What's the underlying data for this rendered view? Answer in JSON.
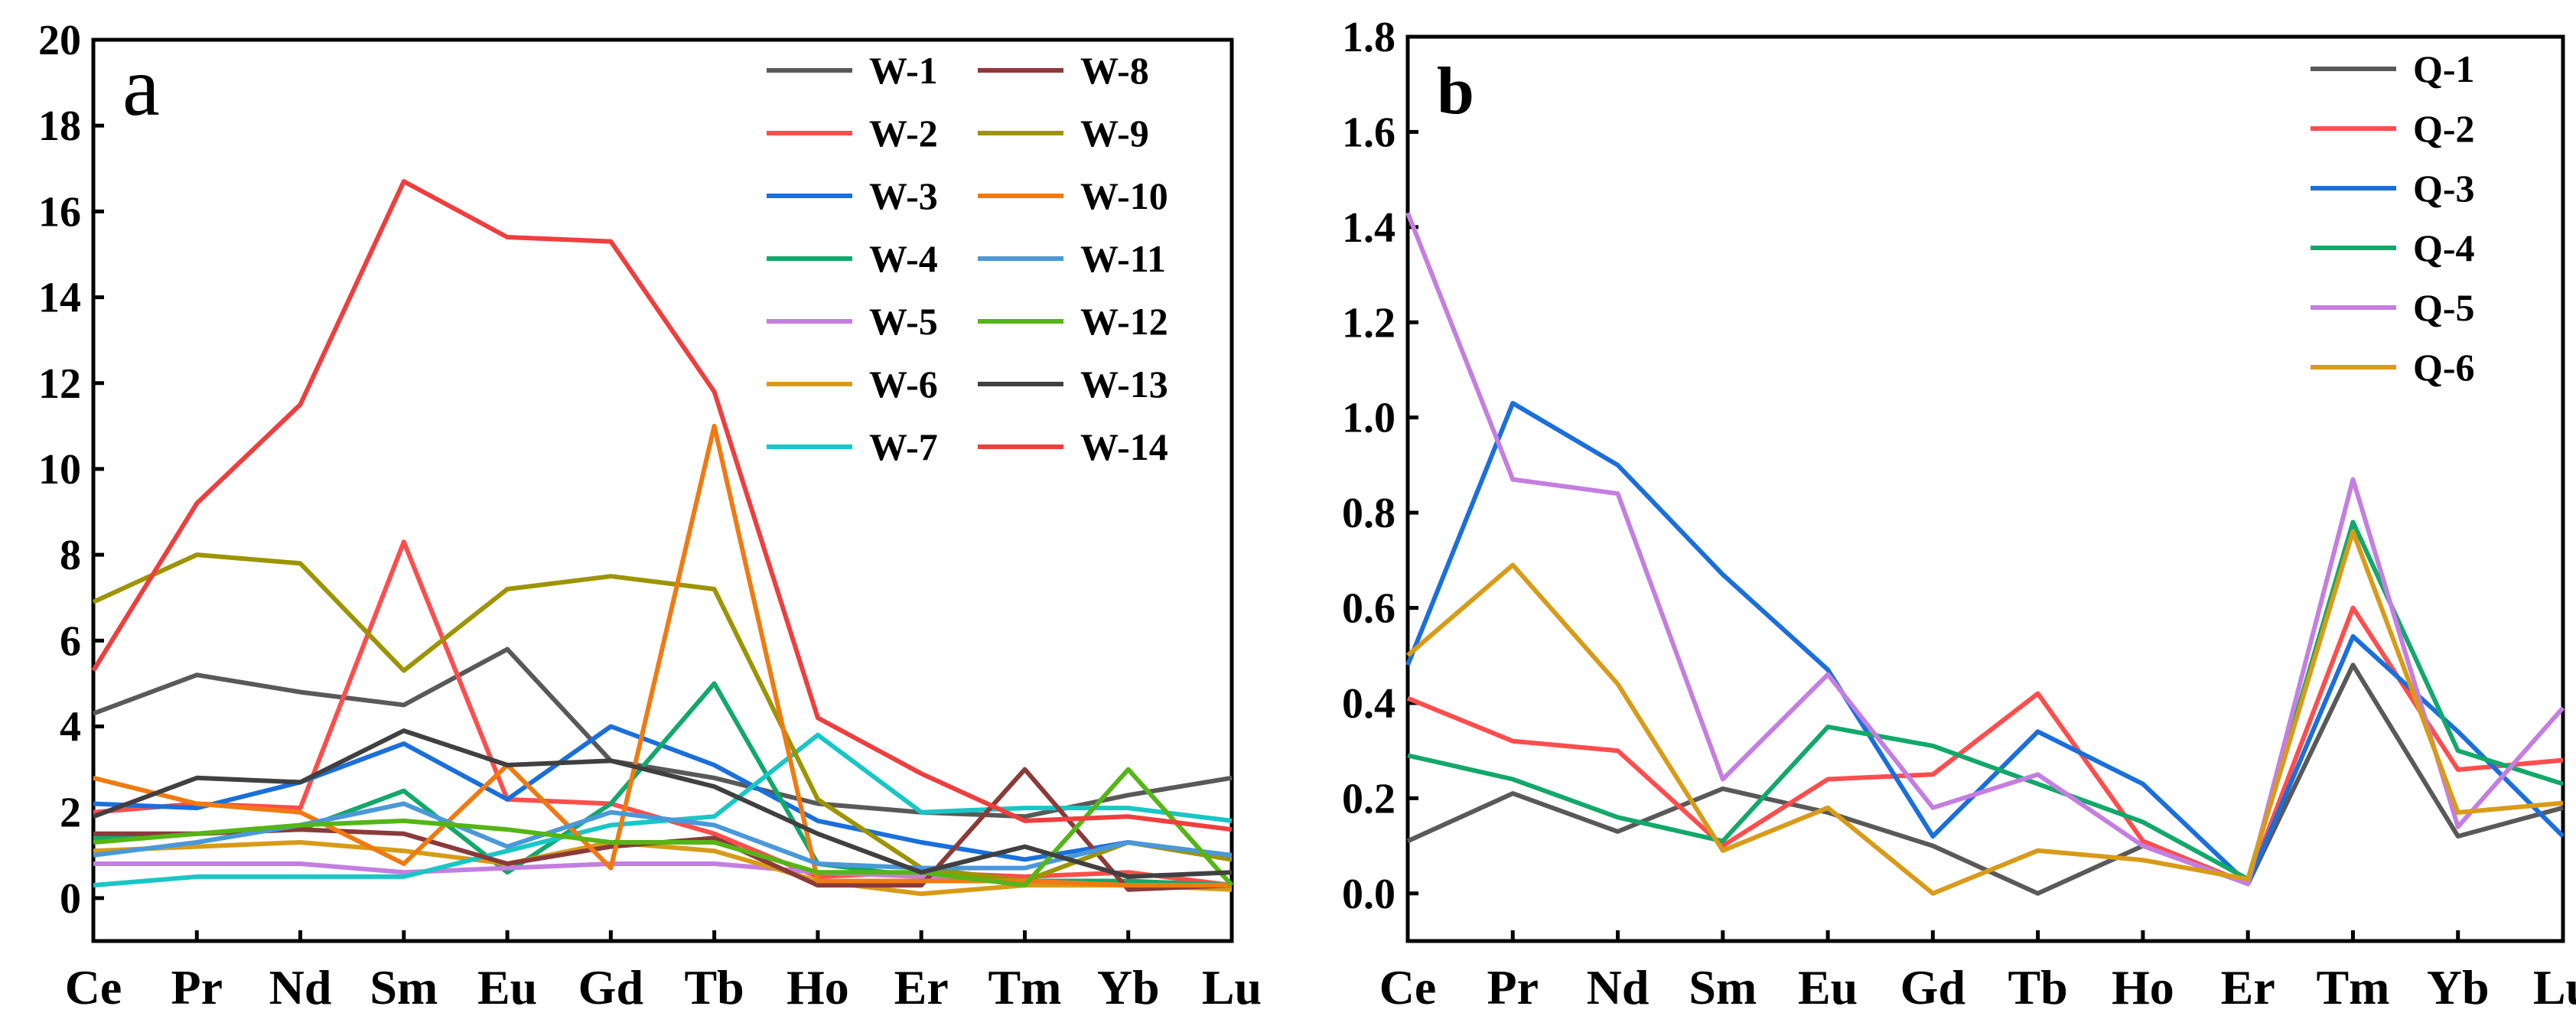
{
  "chart_data": [
    {
      "type": "line",
      "panel_label": "a",
      "categories": [
        "Ce",
        "Pr",
        "Nd",
        "Sm",
        "Eu",
        "Gd",
        "Tb",
        "Ho",
        "Er",
        "Tm",
        "Yb",
        "Lu"
      ],
      "ylim": [
        -1,
        20
      ],
      "yticks": [
        "0",
        "2",
        "4",
        "6",
        "8",
        "10",
        "12",
        "14",
        "16",
        "18",
        "20"
      ],
      "legend_position": "top-right",
      "legend_columns": 2,
      "series": [
        {
          "name": "W-1",
          "color": "#595959",
          "values": [
            4.3,
            5.2,
            4.8,
            4.5,
            5.8,
            3.2,
            2.8,
            2.2,
            2.0,
            1.9,
            2.4,
            2.8
          ]
        },
        {
          "name": "W-2",
          "color": "#ff4d4d",
          "values": [
            2.0,
            2.2,
            2.1,
            8.3,
            2.3,
            2.2,
            1.5,
            0.5,
            0.6,
            0.5,
            0.6,
            0.3
          ]
        },
        {
          "name": "W-3",
          "color": "#1a6fdb",
          "values": [
            2.2,
            2.1,
            2.7,
            3.6,
            2.3,
            4.0,
            3.1,
            1.8,
            1.3,
            0.9,
            1.3,
            0.9
          ]
        },
        {
          "name": "W-4",
          "color": "#13a86b",
          "values": [
            1.4,
            1.5,
            1.6,
            2.5,
            0.6,
            2.2,
            5.0,
            0.8,
            0.5,
            0.4,
            0.4,
            0.3
          ]
        },
        {
          "name": "W-5",
          "color": "#c47ee0",
          "values": [
            0.8,
            0.8,
            0.8,
            0.6,
            0.7,
            0.8,
            0.8,
            0.6,
            0.5,
            0.4,
            0.3,
            0.3
          ]
        },
        {
          "name": "W-6",
          "color": "#d89b18",
          "values": [
            1.1,
            1.2,
            1.3,
            1.1,
            0.8,
            1.3,
            1.1,
            0.4,
            0.1,
            0.3,
            0.3,
            0.2
          ]
        },
        {
          "name": "W-7",
          "color": "#19c6c6",
          "values": [
            0.3,
            0.5,
            0.5,
            0.5,
            1.1,
            1.7,
            1.9,
            3.8,
            2.0,
            2.1,
            2.1,
            1.8
          ]
        },
        {
          "name": "W-8",
          "color": "#8b3a3a",
          "values": [
            1.5,
            1.5,
            1.6,
            1.5,
            0.8,
            1.2,
            1.4,
            0.3,
            0.3,
            3.0,
            0.2,
            0.3
          ]
        },
        {
          "name": "W-9",
          "color": "#9c9400",
          "values": [
            6.9,
            8.0,
            7.8,
            5.3,
            7.2,
            7.5,
            7.2,
            2.3,
            0.7,
            0.4,
            1.3,
            0.9
          ]
        },
        {
          "name": "W-10",
          "color": "#f07a12",
          "values": [
            2.8,
            2.2,
            2.0,
            0.8,
            3.1,
            0.7,
            11.0,
            0.4,
            0.4,
            0.4,
            0.3,
            0.3
          ]
        },
        {
          "name": "W-11",
          "color": "#4a98d9",
          "values": [
            1.0,
            1.3,
            1.7,
            2.2,
            1.2,
            2.0,
            1.7,
            0.8,
            0.7,
            0.7,
            1.3,
            1.0
          ]
        },
        {
          "name": "W-12",
          "color": "#55b517",
          "values": [
            1.3,
            1.5,
            1.7,
            1.8,
            1.6,
            1.3,
            1.3,
            0.6,
            0.6,
            0.3,
            3.0,
            0.3
          ]
        },
        {
          "name": "W-13",
          "color": "#404040",
          "values": [
            1.9,
            2.8,
            2.7,
            3.9,
            3.1,
            3.2,
            2.6,
            1.5,
            0.6,
            1.2,
            0.5,
            0.6
          ]
        },
        {
          "name": "W-14",
          "color": "#ef3e3e",
          "values": [
            5.3,
            9.2,
            11.5,
            16.7,
            15.4,
            15.3,
            11.8,
            4.2,
            2.9,
            1.8,
            1.9,
            1.6
          ]
        }
      ]
    },
    {
      "type": "line",
      "panel_label": "b",
      "categories": [
        "Ce",
        "Pr",
        "Nd",
        "Sm",
        "Eu",
        "Gd",
        "Tb",
        "Ho",
        "Er",
        "Tm",
        "Yb",
        "Lu"
      ],
      "ylim": [
        -0.1,
        1.8
      ],
      "yticks": [
        "0.0",
        "0.2",
        "0.4",
        "0.6",
        "0.8",
        "1.0",
        "1.2",
        "1.4",
        "1.6",
        "1.8"
      ],
      "legend_position": "top-right",
      "legend_columns": 1,
      "series": [
        {
          "name": "Q-1",
          "color": "#595959",
          "values": [
            0.11,
            0.21,
            0.13,
            0.22,
            0.17,
            0.1,
            0.0,
            0.1,
            0.02,
            0.48,
            0.12,
            0.18
          ]
        },
        {
          "name": "Q-2",
          "color": "#ff4d4d",
          "values": [
            0.41,
            0.32,
            0.3,
            0.1,
            0.24,
            0.25,
            0.42,
            0.11,
            0.02,
            0.6,
            0.26,
            0.28
          ]
        },
        {
          "name": "Q-3",
          "color": "#1a6fdb",
          "values": [
            0.48,
            1.03,
            0.9,
            0.67,
            0.47,
            0.12,
            0.34,
            0.23,
            0.02,
            0.54,
            0.34,
            0.12
          ]
        },
        {
          "name": "Q-4",
          "color": "#13a86b",
          "values": [
            0.29,
            0.24,
            0.16,
            0.11,
            0.35,
            0.31,
            0.23,
            0.15,
            0.03,
            0.78,
            0.3,
            0.23
          ]
        },
        {
          "name": "Q-5",
          "color": "#c47ee0",
          "values": [
            1.43,
            0.87,
            0.84,
            0.24,
            0.46,
            0.18,
            0.25,
            0.1,
            0.02,
            0.87,
            0.14,
            0.39
          ]
        },
        {
          "name": "Q-6",
          "color": "#d89b18",
          "values": [
            0.5,
            0.69,
            0.44,
            0.09,
            0.18,
            0.0,
            0.09,
            0.07,
            0.03,
            0.76,
            0.17,
            0.19
          ]
        }
      ]
    }
  ]
}
